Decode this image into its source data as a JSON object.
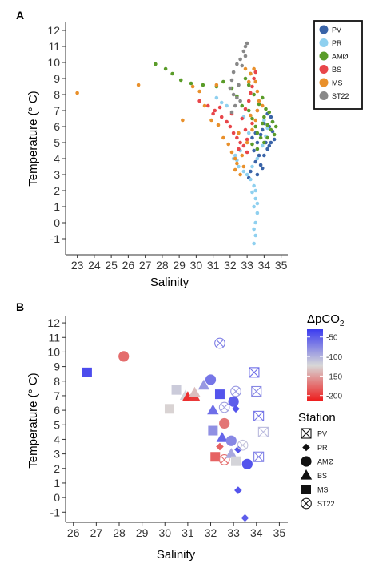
{
  "chart_data": [
    {
      "panel_label": "A",
      "type": "scatter",
      "xlabel": "Salinity",
      "ylabel": "Temperature (° C)",
      "xlim": [
        22.5,
        35.3
      ],
      "ylim": [
        -2.0,
        12.5
      ],
      "xticks": [
        23,
        24,
        25,
        26,
        27,
        28,
        29,
        30,
        31,
        32,
        33,
        34,
        35
      ],
      "yticks": [
        -1,
        0,
        1,
        2,
        3,
        4,
        5,
        6,
        7,
        8,
        9,
        10,
        11,
        12
      ],
      "grid": false,
      "legend_position": "top-right",
      "series": [
        {
          "name": "PV",
          "color": "#3a64a8",
          "points": [
            [
              33.6,
              5.0
            ],
            [
              33.7,
              4.2
            ],
            [
              33.8,
              3.6
            ],
            [
              33.5,
              3.8
            ],
            [
              33.4,
              4.5
            ],
            [
              33.3,
              5.3
            ],
            [
              33.9,
              5.8
            ],
            [
              34.0,
              6.2
            ],
            [
              34.2,
              6.8
            ],
            [
              34.3,
              6.0
            ],
            [
              34.5,
              5.7
            ],
            [
              34.6,
              5.2
            ],
            [
              34.4,
              5.0
            ],
            [
              34.2,
              4.6
            ],
            [
              34.0,
              4.2
            ],
            [
              33.9,
              3.4
            ],
            [
              33.6,
              3.0
            ],
            [
              33.2,
              3.2
            ],
            [
              33.1,
              2.8
            ],
            [
              33.8,
              5.5
            ],
            [
              34.1,
              5.0
            ],
            [
              34.3,
              4.8
            ],
            [
              33.5,
              5.6
            ],
            [
              34.5,
              6.3
            ],
            [
              34.4,
              6.6
            ]
          ]
        },
        {
          "name": "PR",
          "color": "#8fd0ef",
          "points": [
            [
              33.4,
              -1.3
            ],
            [
              33.5,
              -0.8
            ],
            [
              33.4,
              -0.4
            ],
            [
              33.5,
              0.0
            ],
            [
              33.6,
              0.6
            ],
            [
              33.4,
              1.0
            ],
            [
              33.5,
              1.5
            ],
            [
              33.3,
              1.9
            ],
            [
              33.4,
              2.3
            ],
            [
              33.2,
              2.7
            ],
            [
              33.0,
              3.0
            ],
            [
              32.8,
              3.2
            ],
            [
              32.5,
              3.5
            ],
            [
              32.4,
              3.9
            ],
            [
              33.3,
              3.5
            ],
            [
              33.6,
              4.0
            ],
            [
              32.3,
              4.2
            ],
            [
              32.6,
              4.5
            ],
            [
              33.9,
              4.8
            ],
            [
              34.1,
              5.4
            ],
            [
              33.1,
              5.6
            ],
            [
              34.2,
              5.9
            ],
            [
              34.0,
              6.4
            ],
            [
              32.8,
              6.6
            ],
            [
              31.8,
              7.3
            ],
            [
              31.5,
              7.5
            ],
            [
              31.2,
              7.8
            ],
            [
              32.2,
              4.0
            ],
            [
              33.5,
              2.0
            ],
            [
              33.6,
              1.2
            ]
          ]
        },
        {
          "name": "AMØ",
          "color": "#5a9c29",
          "points": [
            [
              27.6,
              9.9
            ],
            [
              28.2,
              9.6
            ],
            [
              28.6,
              9.3
            ],
            [
              29.1,
              8.9
            ],
            [
              29.7,
              8.7
            ],
            [
              30.4,
              8.6
            ],
            [
              31.2,
              8.5
            ],
            [
              31.6,
              8.8
            ],
            [
              32.1,
              8.4
            ],
            [
              32.4,
              7.9
            ],
            [
              32.7,
              7.3
            ],
            [
              33.1,
              7.0
            ],
            [
              33.3,
              6.5
            ],
            [
              33.5,
              6.0
            ],
            [
              33.6,
              5.6
            ],
            [
              33.8,
              5.3
            ],
            [
              33.9,
              6.2
            ],
            [
              34.0,
              6.6
            ],
            [
              34.2,
              6.1
            ],
            [
              34.4,
              5.8
            ],
            [
              34.6,
              5.5
            ],
            [
              34.5,
              6.3
            ],
            [
              34.3,
              6.9
            ],
            [
              33.7,
              7.4
            ],
            [
              33.4,
              8.0
            ],
            [
              33.1,
              8.6
            ],
            [
              32.9,
              9.0
            ],
            [
              33.2,
              9.3
            ],
            [
              34.0,
              5.0
            ],
            [
              34.2,
              5.3
            ],
            [
              34.7,
              6.0
            ],
            [
              34.1,
              7.1
            ],
            [
              33.9,
              7.8
            ],
            [
              33.3,
              4.9
            ],
            [
              33.6,
              4.6
            ]
          ]
        },
        {
          "name": "BS",
          "color": "#e8464a",
          "points": [
            [
              30.2,
              7.6
            ],
            [
              30.7,
              7.3
            ],
            [
              31.1,
              7.0
            ],
            [
              31.5,
              6.6
            ],
            [
              31.8,
              6.3
            ],
            [
              32.0,
              6.0
            ],
            [
              32.2,
              5.6
            ],
            [
              32.4,
              5.3
            ],
            [
              32.6,
              5.0
            ],
            [
              32.8,
              4.8
            ],
            [
              33.0,
              5.2
            ],
            [
              32.9,
              5.8
            ],
            [
              32.7,
              6.5
            ],
            [
              32.9,
              7.1
            ],
            [
              33.1,
              7.6
            ],
            [
              33.2,
              8.1
            ],
            [
              33.3,
              8.5
            ],
            [
              33.4,
              9.0
            ],
            [
              33.5,
              9.4
            ],
            [
              33.3,
              6.2
            ],
            [
              33.0,
              4.4
            ],
            [
              32.5,
              4.6
            ],
            [
              31.0,
              6.8
            ],
            [
              31.4,
              7.2
            ],
            [
              32.1,
              6.8
            ],
            [
              33.6,
              7.0
            ]
          ]
        },
        {
          "name": "MS",
          "color": "#e9902b",
          "points": [
            [
              23.0,
              8.1
            ],
            [
              26.6,
              8.6
            ],
            [
              29.2,
              6.4
            ],
            [
              29.8,
              8.5
            ],
            [
              30.2,
              8.2
            ],
            [
              30.5,
              7.3
            ],
            [
              30.9,
              6.4
            ],
            [
              31.3,
              6.1
            ],
            [
              31.6,
              5.3
            ],
            [
              31.9,
              4.9
            ],
            [
              32.1,
              4.4
            ],
            [
              32.3,
              4.0
            ],
            [
              32.4,
              3.7
            ],
            [
              32.3,
              3.3
            ],
            [
              32.6,
              3.0
            ],
            [
              32.8,
              3.5
            ],
            [
              32.7,
              4.2
            ],
            [
              33.0,
              5.0
            ],
            [
              33.3,
              5.8
            ],
            [
              33.5,
              6.4
            ],
            [
              33.6,
              7.0
            ],
            [
              33.7,
              7.6
            ],
            [
              33.6,
              8.2
            ],
            [
              33.5,
              8.8
            ],
            [
              33.2,
              9.3
            ],
            [
              33.4,
              9.6
            ],
            [
              32.9,
              9.6
            ],
            [
              33.1,
              8.8
            ],
            [
              33.9,
              7.3
            ],
            [
              31.2,
              8.6
            ],
            [
              32.5,
              5.6
            ],
            [
              33.2,
              6.7
            ]
          ]
        },
        {
          "name": "ST22",
          "color": "#888888",
          "points": [
            [
              32.8,
              10.7
            ],
            [
              32.9,
              11.0
            ],
            [
              33.0,
              11.2
            ],
            [
              32.6,
              10.2
            ],
            [
              32.4,
              9.9
            ],
            [
              32.2,
              9.4
            ],
            [
              32.1,
              8.9
            ],
            [
              32.0,
              8.4
            ],
            [
              32.2,
              8.0
            ],
            [
              32.4,
              7.8
            ],
            [
              32.6,
              7.6
            ],
            [
              32.3,
              7.3
            ],
            [
              32.1,
              6.9
            ],
            [
              32.9,
              10.4
            ],
            [
              32.7,
              9.8
            ],
            [
              32.5,
              8.6
            ]
          ]
        }
      ]
    },
    {
      "panel_label": "B",
      "type": "scatter",
      "xlabel": "Salinity",
      "ylabel": "Temperature (° C)",
      "xlim": [
        25.8,
        35.3
      ],
      "ylim": [
        -1.7,
        12.5
      ],
      "xticks": [
        26,
        27,
        28,
        29,
        30,
        31,
        32,
        33,
        34,
        35
      ],
      "yticks": [
        -1,
        0,
        1,
        2,
        3,
        4,
        5,
        6,
        7,
        8,
        9,
        10,
        11,
        12
      ],
      "grid": false,
      "legend_position": "right",
      "color_legend": {
        "title": "ΔpCO2",
        "ticks": [
          -50,
          -100,
          -150,
          -200
        ],
        "range": [
          -215,
          -30
        ],
        "colors": {
          "high": "#3b3bf0",
          "mid": "#d8d8d8",
          "low": "#ee1a1a"
        }
      },
      "shape_legend": [
        {
          "label": "PV",
          "shape": "boxcross"
        },
        {
          "label": "PR",
          "shape": "diamond"
        },
        {
          "label": "AMØ",
          "shape": "circle"
        },
        {
          "label": "BS",
          "shape": "triangle"
        },
        {
          "label": "MS",
          "shape": "square"
        },
        {
          "label": "ST22",
          "shape": "circlecross"
        }
      ],
      "points": [
        {
          "station": "MS",
          "salinity": 26.6,
          "temperature": 8.6,
          "dpco2": -40
        },
        {
          "station": "AMØ",
          "salinity": 28.2,
          "temperature": 9.7,
          "dpco2": -175
        },
        {
          "station": "MS",
          "salinity": 30.2,
          "temperature": 6.1,
          "dpco2": -125
        },
        {
          "station": "MS",
          "salinity": 30.5,
          "temperature": 7.4,
          "dpco2": -115
        },
        {
          "station": "BS",
          "salinity": 30.9,
          "temperature": 7.0,
          "dpco2": -120
        },
        {
          "station": "BS",
          "salinity": 31.0,
          "temperature": 6.9,
          "dpco2": -205
        },
        {
          "station": "BS",
          "salinity": 31.3,
          "temperature": 6.9,
          "dpco2": -200
        },
        {
          "station": "BS",
          "salinity": 31.3,
          "temperature": 7.2,
          "dpco2": -135
        },
        {
          "station": "BS",
          "salinity": 31.7,
          "temperature": 7.7,
          "dpco2": -85
        },
        {
          "station": "AMØ",
          "salinity": 32.0,
          "temperature": 8.1,
          "dpco2": -65
        },
        {
          "station": "BS",
          "salinity": 32.1,
          "temperature": 6.0,
          "dpco2": -60
        },
        {
          "station": "MS",
          "salinity": 32.1,
          "temperature": 4.6,
          "dpco2": -80
        },
        {
          "station": "MS",
          "salinity": 32.4,
          "temperature": 7.1,
          "dpco2": -45
        },
        {
          "station": "ST22",
          "salinity": 32.4,
          "temperature": 10.6,
          "dpco2": -70
        },
        {
          "station": "ST22",
          "salinity": 32.6,
          "temperature": 6.2,
          "dpco2": -90
        },
        {
          "station": "AMØ",
          "salinity": 32.6,
          "temperature": 5.1,
          "dpco2": -170
        },
        {
          "station": "BS",
          "salinity": 32.5,
          "temperature": 4.1,
          "dpco2": -55
        },
        {
          "station": "MS",
          "salinity": 32.2,
          "temperature": 2.8,
          "dpco2": -180
        },
        {
          "station": "ST22",
          "salinity": 32.6,
          "temperature": 2.6,
          "dpco2": -175
        },
        {
          "station": "PR",
          "salinity": 32.4,
          "temperature": 3.5,
          "dpco2": -180
        },
        {
          "station": "AMØ",
          "salinity": 33.0,
          "temperature": 6.6,
          "dpco2": -50
        },
        {
          "station": "PR",
          "salinity": 33.1,
          "temperature": 6.1,
          "dpco2": -45
        },
        {
          "station": "ST22",
          "salinity": 33.1,
          "temperature": 7.3,
          "dpco2": -85
        },
        {
          "station": "AMØ",
          "salinity": 32.9,
          "temperature": 3.9,
          "dpco2": -75
        },
        {
          "station": "PR",
          "salinity": 33.2,
          "temperature": 3.3,
          "dpco2": -45
        },
        {
          "station": "ST22",
          "salinity": 33.4,
          "temperature": 3.6,
          "dpco2": -110
        },
        {
          "station": "BS",
          "salinity": 32.9,
          "temperature": 3.0,
          "dpco2": -95
        },
        {
          "station": "MS",
          "salinity": 33.1,
          "temperature": 2.5,
          "dpco2": -120
        },
        {
          "station": "AMØ",
          "salinity": 33.6,
          "temperature": 2.3,
          "dpco2": -45
        },
        {
          "station": "PR",
          "salinity": 33.2,
          "temperature": 0.5,
          "dpco2": -45
        },
        {
          "station": "PR",
          "salinity": 33.5,
          "temperature": -1.4,
          "dpco2": -50
        },
        {
          "station": "PV",
          "salinity": 33.9,
          "temperature": 8.6,
          "dpco2": -60
        },
        {
          "station": "PV",
          "salinity": 34.0,
          "temperature": 7.3,
          "dpco2": -75
        },
        {
          "station": "PV",
          "salinity": 34.1,
          "temperature": 5.6,
          "dpco2": -65
        },
        {
          "station": "PV",
          "salinity": 34.3,
          "temperature": 4.5,
          "dpco2": -105
        },
        {
          "station": "PV",
          "salinity": 34.1,
          "temperature": 2.8,
          "dpco2": -70
        }
      ]
    }
  ]
}
